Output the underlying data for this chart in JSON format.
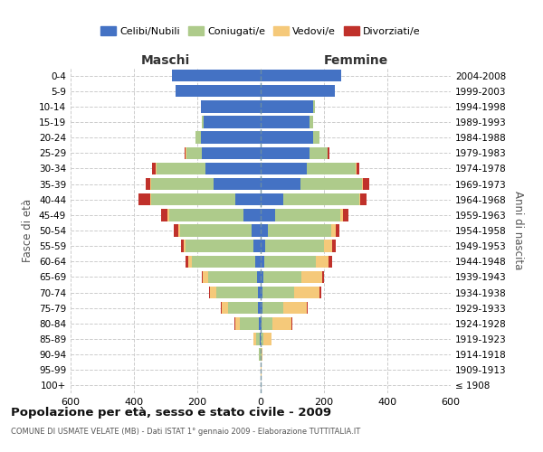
{
  "age_groups": [
    "100+",
    "95-99",
    "90-94",
    "85-89",
    "80-84",
    "75-79",
    "70-74",
    "65-69",
    "60-64",
    "55-59",
    "50-54",
    "45-49",
    "40-44",
    "35-39",
    "30-34",
    "25-29",
    "20-24",
    "15-19",
    "10-14",
    "5-9",
    "0-4"
  ],
  "birth_years": [
    "≤ 1908",
    "1909-1913",
    "1914-1918",
    "1919-1923",
    "1924-1928",
    "1929-1933",
    "1934-1938",
    "1939-1943",
    "1944-1948",
    "1949-1953",
    "1954-1958",
    "1959-1963",
    "1964-1968",
    "1969-1973",
    "1974-1978",
    "1979-1983",
    "1984-1988",
    "1989-1993",
    "1994-1998",
    "1999-2003",
    "2004-2008"
  ],
  "males": {
    "celibi": [
      0,
      0,
      0,
      2,
      5,
      8,
      10,
      12,
      18,
      22,
      30,
      55,
      80,
      150,
      175,
      185,
      190,
      180,
      190,
      270,
      280
    ],
    "coniugati": [
      0,
      0,
      5,
      12,
      60,
      95,
      130,
      155,
      200,
      215,
      225,
      235,
      265,
      195,
      155,
      50,
      15,
      5,
      0,
      0,
      0
    ],
    "vedovi": [
      0,
      0,
      2,
      8,
      15,
      20,
      20,
      15,
      10,
      5,
      5,
      5,
      5,
      3,
      2,
      1,
      0,
      0,
      0,
      0,
      0
    ],
    "divorziati": [
      0,
      0,
      0,
      0,
      2,
      2,
      3,
      5,
      8,
      10,
      15,
      20,
      35,
      15,
      10,
      5,
      0,
      0,
      0,
      0,
      0
    ]
  },
  "females": {
    "nubili": [
      0,
      0,
      0,
      0,
      2,
      5,
      5,
      8,
      10,
      15,
      22,
      45,
      70,
      125,
      145,
      155,
      165,
      155,
      165,
      235,
      255
    ],
    "coniugate": [
      0,
      0,
      2,
      8,
      35,
      65,
      100,
      120,
      165,
      185,
      200,
      205,
      240,
      195,
      155,
      55,
      20,
      10,
      5,
      0,
      0
    ],
    "vedove": [
      0,
      2,
      5,
      25,
      60,
      75,
      80,
      65,
      40,
      25,
      15,
      10,
      5,
      3,
      2,
      1,
      0,
      0,
      0,
      0,
      0
    ],
    "divorziate": [
      0,
      0,
      0,
      2,
      2,
      3,
      5,
      8,
      12,
      12,
      12,
      18,
      20,
      20,
      10,
      5,
      0,
      0,
      0,
      0,
      0
    ]
  },
  "colors": {
    "celibi_nubili": "#4472C4",
    "coniugati_e": "#AECB8B",
    "vedovi_e": "#F5C97A",
    "divorziati_e": "#C0312B"
  },
  "title": "Popolazione per età, sesso e stato civile - 2009",
  "subtitle": "COMUNE DI USMATE VELATE (MB) - Dati ISTAT 1° gennaio 2009 - Elaborazione TUTTITALIA.IT",
  "xlabel_left": "Maschi",
  "xlabel_right": "Femmine",
  "ylabel_left": "Fasce di età",
  "ylabel_right": "Anni di nascita",
  "xlim": 600,
  "background_color": "#ffffff",
  "grid_color": "#cccccc",
  "tick_vals": [
    -600,
    -400,
    -200,
    0,
    200,
    400,
    600
  ]
}
